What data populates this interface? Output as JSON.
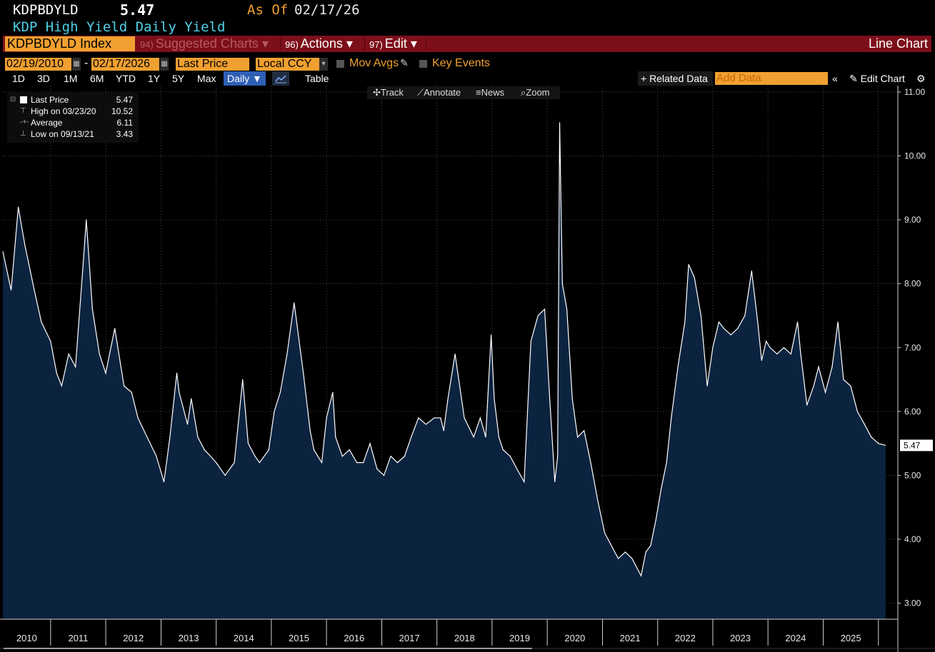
{
  "header": {
    "ticker": "KDPBDYLD",
    "last_value": "5.47",
    "as_of_label": "As Of",
    "as_of_date": "02/17/26",
    "subtitle": "KDP High Yield Daily Yield"
  },
  "toolbar": {
    "index_field": "KDPBDYLD Index",
    "suggested": {
      "num": "94)",
      "label": "Suggested Charts ▾"
    },
    "actions": {
      "num": "96)",
      "label": "Actions ▾"
    },
    "edit": {
      "num": "97)",
      "label": "Edit ▾"
    },
    "chart_type": "Line Chart"
  },
  "range": {
    "start": "02/19/2010",
    "end": "02/17/2026",
    "field": "Last Price",
    "currency": "Local CCY",
    "mov_avgs": "Mov Avgs",
    "key_events": "Key Events"
  },
  "periods": [
    "1D",
    "3D",
    "1M",
    "6M",
    "YTD",
    "1Y",
    "5Y",
    "Max"
  ],
  "frequency": "Daily ▼",
  "table_label": "Table",
  "related": "+ Related Data",
  "add_data_placeholder": "Add Data",
  "edit_chart": "Edit Chart",
  "chart_tools": {
    "track": "Track",
    "annotate": "Annotate",
    "news": "News",
    "zoom": "Zoom"
  },
  "legend": {
    "last": {
      "label": "Last Price",
      "value": "5.47"
    },
    "high": {
      "label": "High on 03/23/20",
      "value": "10.52"
    },
    "avg": {
      "label": "Average",
      "value": "6.11"
    },
    "low": {
      "label": "Low on 09/13/21",
      "value": "3.43"
    }
  },
  "colors": {
    "line": "#ffffff",
    "area": "#0c2340",
    "accent": "#f0a030",
    "bar": "#7d0f1a"
  },
  "chart_data": {
    "type": "area",
    "y_ticks": [
      "3.00",
      "4.00",
      "5.00",
      "6.00",
      "7.00",
      "8.00",
      "9.00",
      "10.00",
      "11.00"
    ],
    "ylim": [
      2.75,
      11.1
    ],
    "x_ticks": [
      "2010",
      "2011",
      "2012",
      "2013",
      "2014",
      "2015",
      "2016",
      "2017",
      "2018",
      "2019",
      "2020",
      "2021",
      "2022",
      "2023",
      "2024",
      "2025"
    ],
    "xlim": [
      "2010-02-19",
      "2026-02-17"
    ],
    "last_label": "5.47",
    "series": [
      {
        "x": [
          "2010-02-19",
          "2010-04-15",
          "2010-06-01",
          "2010-07-15",
          "2010-09-15",
          "2010-11-01",
          "2011-01-01",
          "2011-02-10",
          "2011-03-15",
          "2011-05-01",
          "2011-06-15",
          "2011-08-01",
          "2011-08-25",
          "2011-10-05",
          "2011-11-20",
          "2012-01-01",
          "2012-03-01",
          "2012-05-01",
          "2012-06-20",
          "2012-08-01",
          "2012-10-01",
          "2012-12-01",
          "2013-01-20",
          "2013-03-01",
          "2013-04-15",
          "2013-05-01",
          "2013-06-25",
          "2013-07-20",
          "2013-09-01",
          "2013-10-15",
          "2013-11-25",
          "2014-01-01",
          "2014-03-01",
          "2014-05-01",
          "2014-06-25",
          "2014-08-01",
          "2014-09-15",
          "2014-10-15",
          "2014-12-15",
          "2015-01-20",
          "2015-03-01",
          "2015-04-15",
          "2015-06-01",
          "2015-08-01",
          "2015-09-15",
          "2015-10-10",
          "2015-12-01",
          "2016-01-01",
          "2016-02-11",
          "2016-03-01",
          "2016-04-15",
          "2016-06-01",
          "2016-07-20",
          "2016-09-01",
          "2016-10-15",
          "2016-12-01",
          "2017-01-15",
          "2017-03-01",
          "2017-04-15",
          "2017-06-01",
          "2017-07-15",
          "2017-09-01",
          "2017-10-20",
          "2017-12-15",
          "2018-01-25",
          "2018-02-15",
          "2018-03-15",
          "2018-05-01",
          "2018-07-01",
          "2018-09-01",
          "2018-10-15",
          "2018-11-20",
          "2018-12-26",
          "2019-01-15",
          "2019-02-15",
          "2019-03-15",
          "2019-05-01",
          "2019-06-15",
          "2019-08-01",
          "2019-09-15",
          "2019-11-01",
          "2019-12-15",
          "2020-01-15",
          "2020-02-20",
          "2020-03-10",
          "2020-03-23",
          "2020-04-10",
          "2020-05-10",
          "2020-06-15",
          "2020-07-20",
          "2020-09-01",
          "2020-10-15",
          "2020-12-01",
          "2021-01-15",
          "2021-03-01",
          "2021-04-15",
          "2021-06-01",
          "2021-07-15",
          "2021-09-13",
          "2021-10-15",
          "2021-11-15",
          "2021-12-20",
          "2022-01-25",
          "2022-03-01",
          "2022-04-01",
          "2022-05-15",
          "2022-06-30",
          "2022-07-25",
          "2022-09-01",
          "2022-10-15",
          "2022-11-25",
          "2023-01-01",
          "2023-02-10",
          "2023-03-15",
          "2023-05-01",
          "2023-06-15",
          "2023-08-01",
          "2023-09-15",
          "2023-10-25",
          "2023-11-20",
          "2023-12-20",
          "2024-01-15",
          "2024-03-01",
          "2024-04-15",
          "2024-06-01",
          "2024-07-15",
          "2024-08-05",
          "2024-09-15",
          "2024-10-30",
          "2024-12-01",
          "2025-01-15",
          "2025-03-01",
          "2025-04-08",
          "2025-05-15",
          "2025-07-01",
          "2025-08-15",
          "2025-10-01",
          "2025-11-15",
          "2026-01-01",
          "2026-02-17"
        ],
        "y": [
          8.5,
          7.9,
          9.2,
          8.6,
          7.9,
          7.4,
          7.1,
          6.6,
          6.4,
          6.9,
          6.7,
          8.2,
          9.0,
          7.6,
          6.9,
          6.6,
          7.3,
          6.4,
          6.3,
          5.9,
          5.6,
          5.3,
          4.9,
          5.6,
          6.6,
          6.3,
          5.8,
          6.2,
          5.6,
          5.4,
          5.3,
          5.2,
          5.0,
          5.2,
          6.5,
          5.5,
          5.3,
          5.2,
          5.4,
          6.0,
          6.3,
          6.9,
          7.7,
          6.6,
          5.7,
          5.4,
          5.2,
          5.9,
          6.3,
          5.6,
          5.3,
          5.4,
          5.2,
          5.2,
          5.5,
          5.1,
          5.0,
          5.3,
          5.2,
          5.3,
          5.6,
          5.9,
          5.8,
          5.9,
          5.9,
          5.7,
          6.2,
          6.9,
          5.9,
          5.6,
          5.9,
          5.6,
          7.2,
          6.2,
          5.6,
          5.4,
          5.3,
          5.1,
          4.9,
          7.1,
          7.5,
          7.6,
          6.3,
          4.9,
          5.3,
          10.52,
          8.0,
          7.6,
          6.2,
          5.6,
          5.7,
          5.2,
          4.6,
          4.1,
          3.9,
          3.7,
          3.8,
          3.7,
          3.43,
          3.8,
          3.9,
          4.3,
          4.8,
          5.2,
          5.9,
          6.7,
          7.4,
          8.3,
          8.1,
          7.5,
          6.4,
          7.0,
          7.4,
          7.3,
          7.2,
          7.3,
          7.5,
          8.2,
          7.4,
          6.8,
          7.1,
          7.0,
          6.9,
          7.0,
          6.9,
          7.4,
          6.9,
          6.1,
          6.4,
          6.7,
          6.3,
          6.7,
          7.4,
          6.5,
          6.4,
          6.0,
          5.8,
          5.6,
          5.5,
          5.47
        ]
      }
    ]
  }
}
